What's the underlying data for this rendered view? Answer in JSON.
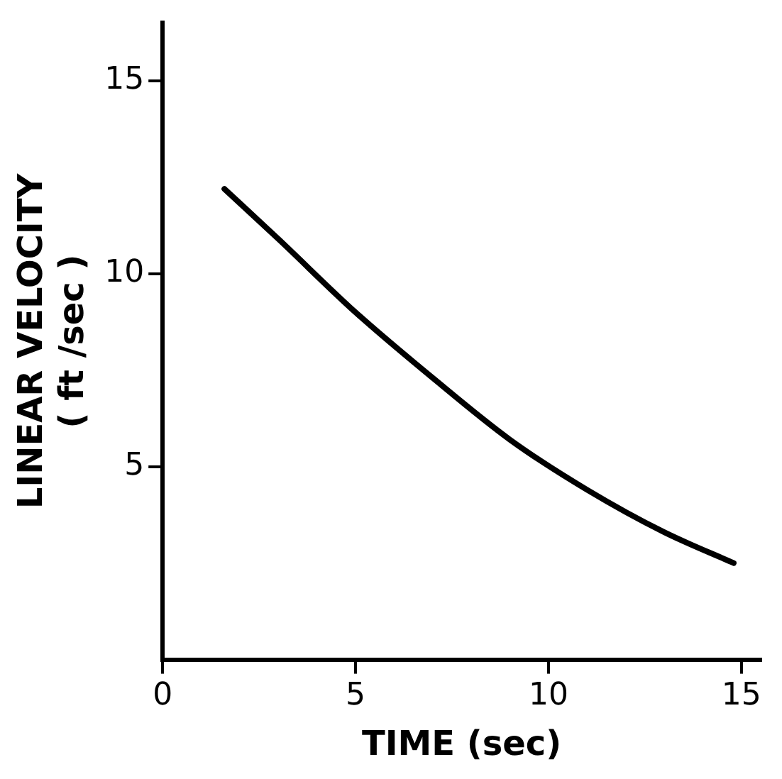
{
  "chart_data": {
    "type": "line",
    "xlabel": "TIME (sec)",
    "ylabel": "LINEAR VELOCITY\n( ft /sec )",
    "x": [
      1.6,
      3,
      5,
      7,
      9,
      11,
      13,
      14.8
    ],
    "series": [
      {
        "color": "#000000",
        "values": [
          12.2,
          10.9,
          9.0,
          7.3,
          5.7,
          4.4,
          3.3,
          2.5
        ]
      }
    ],
    "xlim": [
      0,
      15.5
    ],
    "xticks": [
      0,
      5,
      10,
      15
    ],
    "ylim": [
      0,
      16.5
    ],
    "yticks": [
      5,
      10,
      15
    ],
    "grid": false,
    "legend": false,
    "marker": "none",
    "line_style": "solid"
  }
}
